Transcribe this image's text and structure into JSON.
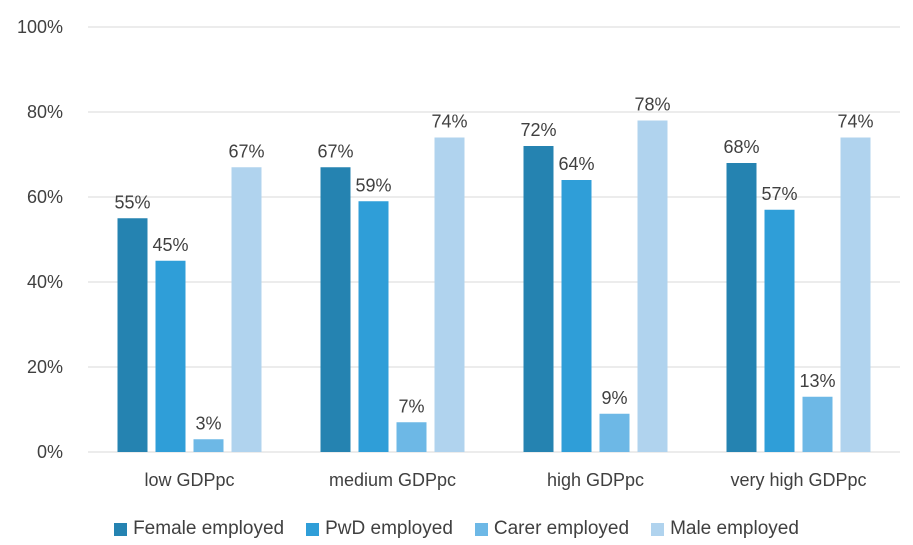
{
  "chart_data": {
    "type": "bar",
    "categories": [
      "low GDPpc",
      "medium GDPpc",
      "high GDPpc",
      "very high GDPpc"
    ],
    "series": [
      {
        "name": "Female employed",
        "values": [
          55,
          67,
          72,
          68
        ],
        "labels": [
          "55%",
          "67%",
          "72%",
          "68%"
        ],
        "color": "#2583B1"
      },
      {
        "name": "PwD employed",
        "values": [
          45,
          59,
          64,
          57
        ],
        "labels": [
          "45%",
          "59%",
          "64%",
          "57%"
        ],
        "color": "#2F9ED8"
      },
      {
        "name": "Carer employed",
        "values": [
          3,
          7,
          9,
          13
        ],
        "labels": [
          "3%",
          "7%",
          "9%",
          "13%"
        ],
        "color": "#6DB8E6"
      },
      {
        "name": "Male employed",
        "values": [
          67,
          74,
          78,
          74
        ],
        "labels": [
          "67%",
          "74%",
          "78%",
          "74%"
        ],
        "color": "#B0D3EE"
      }
    ],
    "ylim": [
      0,
      100
    ],
    "yticks": [
      0,
      20,
      40,
      60,
      80,
      100
    ],
    "ytick_labels": [
      "0%",
      "20%",
      "40%",
      "60%",
      "80%",
      "100%"
    ],
    "grid": true,
    "legend_position": "bottom"
  }
}
